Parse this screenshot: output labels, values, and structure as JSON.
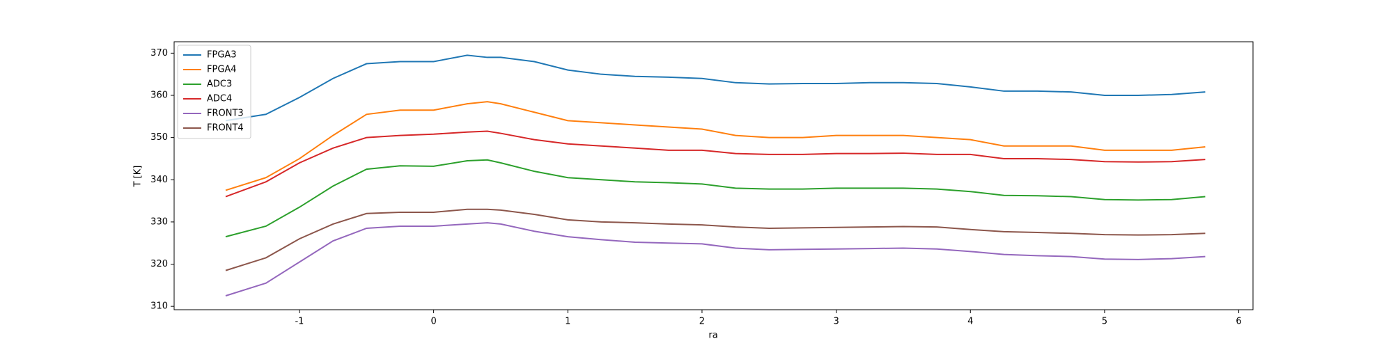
{
  "chart_data": {
    "type": "line",
    "xlabel": "ra",
    "ylabel": "T [K]",
    "x": [
      -1.55,
      -1.25,
      -1.0,
      -0.75,
      -0.5,
      -0.25,
      0,
      0.25,
      0.4,
      0.5,
      0.75,
      1.0,
      1.25,
      1.5,
      1.75,
      2.0,
      2.25,
      2.5,
      2.75,
      3.0,
      3.25,
      3.5,
      3.75,
      4.0,
      4.25,
      4.5,
      4.75,
      5.0,
      5.25,
      5.5,
      5.75
    ],
    "series": [
      {
        "name": "FPGA3",
        "color": "#1f77b4",
        "values": [
          354,
          355.5,
          359.5,
          364,
          367.5,
          368,
          368,
          369.5,
          369,
          369,
          368,
          366,
          365,
          364.5,
          364.3,
          364,
          363,
          362.7,
          362.8,
          362.8,
          363,
          363,
          362.8,
          362,
          361,
          361,
          360.8,
          360,
          360,
          360.2,
          360.8
        ]
      },
      {
        "name": "FPGA4",
        "color": "#ff7f0e",
        "values": [
          337.5,
          340.5,
          345,
          350.5,
          355.5,
          356.5,
          356.5,
          358,
          358.5,
          358,
          356,
          354,
          353.5,
          353,
          352.5,
          352,
          350.5,
          350,
          350,
          350.5,
          350.5,
          350.5,
          350,
          349.5,
          348,
          348,
          348,
          347,
          347,
          347,
          347.8
        ]
      },
      {
        "name": "ADC3",
        "color": "#2ca02c",
        "values": [
          326.5,
          329,
          333.5,
          338.5,
          342.5,
          343.3,
          343.2,
          344.5,
          344.7,
          344,
          342,
          340.5,
          340,
          339.5,
          339.3,
          339,
          338,
          337.8,
          337.8,
          338,
          338,
          338,
          337.8,
          337.2,
          336.3,
          336.2,
          336,
          335.3,
          335.2,
          335.3,
          336
        ]
      },
      {
        "name": "ADC4",
        "color": "#d62728",
        "values": [
          336,
          339.5,
          344,
          347.5,
          350,
          350.5,
          350.8,
          351.3,
          351.5,
          351,
          349.5,
          348.5,
          348,
          347.5,
          347,
          347,
          346.2,
          346,
          346,
          346.2,
          346.2,
          346.3,
          346,
          346,
          345,
          345,
          344.8,
          344.3,
          344.2,
          344.3,
          344.8
        ]
      },
      {
        "name": "FRONT3",
        "color": "#9467bd",
        "values": [
          312.5,
          315.5,
          320.5,
          325.5,
          328.5,
          329,
          329,
          329.5,
          329.8,
          329.5,
          327.8,
          326.5,
          325.8,
          325.2,
          325,
          324.8,
          323.8,
          323.4,
          323.5,
          323.6,
          323.7,
          323.8,
          323.6,
          323,
          322.3,
          322,
          321.8,
          321.2,
          321.1,
          321.3,
          321.8
        ]
      },
      {
        "name": "FRONT4",
        "color": "#8c564b",
        "values": [
          318.5,
          321.5,
          326,
          329.5,
          332,
          332.3,
          332.3,
          333,
          333,
          332.8,
          331.8,
          330.5,
          330,
          329.8,
          329.5,
          329.3,
          328.8,
          328.5,
          328.6,
          328.7,
          328.8,
          328.9,
          328.8,
          328.2,
          327.7,
          327.5,
          327.3,
          327,
          326.9,
          327,
          327.3
        ]
      }
    ],
    "xlim": [
      -1.934,
      6.106
    ],
    "ylim": [
      309.2,
      372.7
    ],
    "xticks": [
      -1,
      0,
      1,
      2,
      3,
      4,
      5,
      6
    ],
    "yticks": [
      310,
      320,
      330,
      340,
      350,
      360,
      370
    ],
    "legend": "upper left"
  }
}
